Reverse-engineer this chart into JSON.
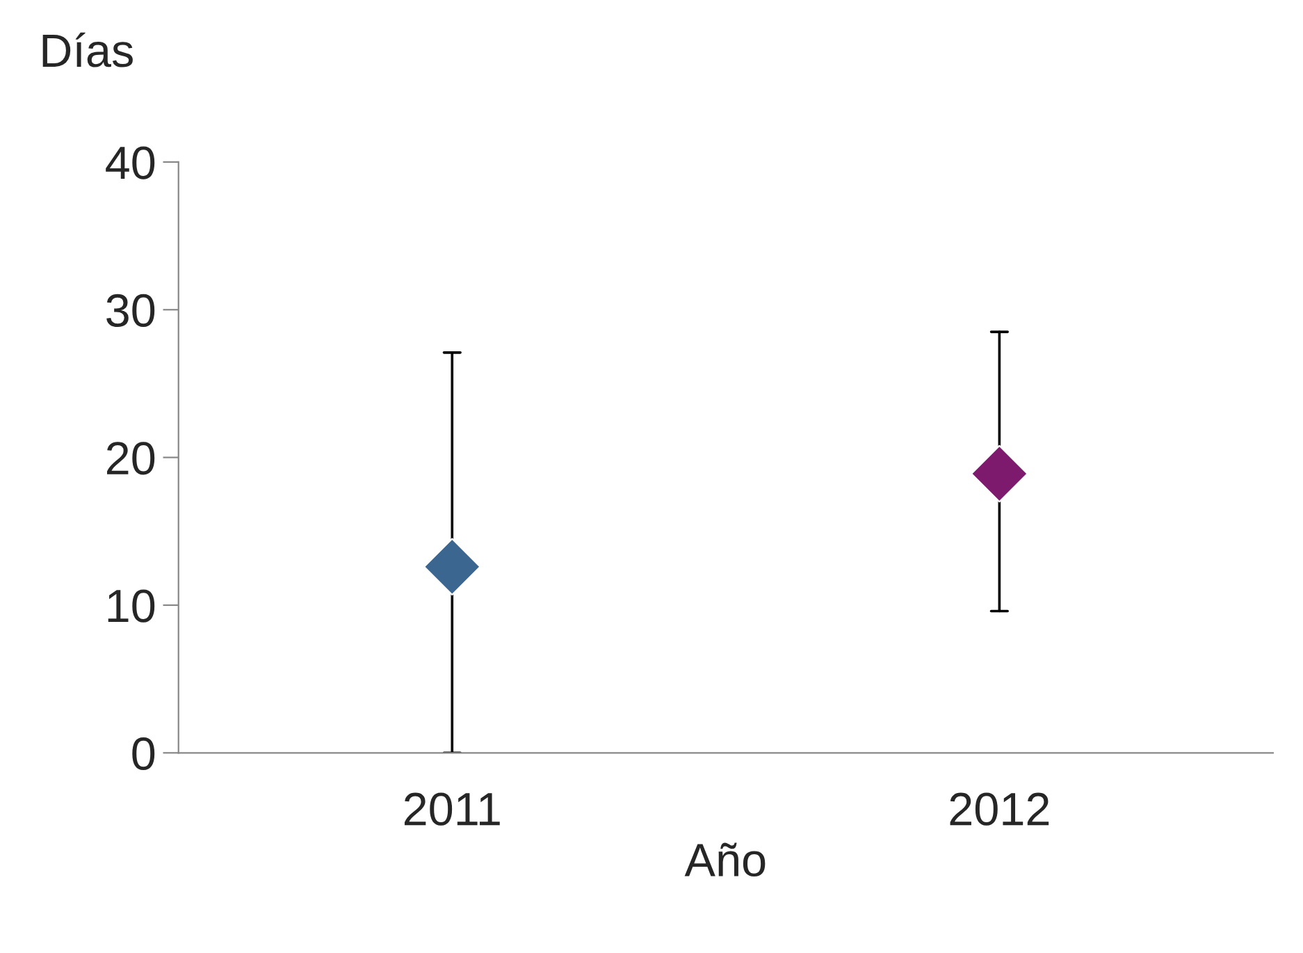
{
  "chart_data": {
    "type": "scatter",
    "xlabel": "Año",
    "ylabel": "Días",
    "categories": [
      "2011",
      "2012"
    ],
    "series": [
      {
        "values": [
          12.6,
          18.9
        ],
        "colors": [
          "#3a6690",
          "#7e1a6e"
        ],
        "errors": [
          [
            0,
            27.1
          ],
          [
            9.6,
            28.5
          ]
        ]
      }
    ],
    "ylim": [
      0,
      40
    ],
    "yticks": [
      0,
      10,
      20,
      30,
      40
    ],
    "grid": false,
    "legend": false,
    "marker": "diamond"
  }
}
